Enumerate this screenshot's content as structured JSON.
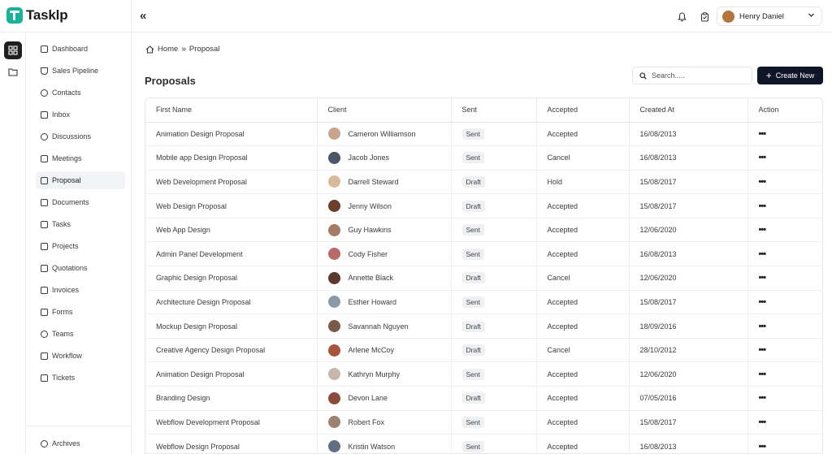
{
  "app": {
    "name": "Tasklp"
  },
  "topbar": {
    "collapse_glyph": "«",
    "bell_icon": "bell-icon",
    "clipboard_icon": "clipboard-icon",
    "user_name": "Henry Daniel",
    "avatar_color": "#b5743c"
  },
  "sidebar": {
    "items": [
      {
        "label": "Dashboard",
        "icon": "dashboard-icon"
      },
      {
        "label": "Sales Pipeline",
        "icon": "funnel-icon"
      },
      {
        "label": "Contacts",
        "icon": "user-icon"
      },
      {
        "label": "Inbox",
        "icon": "inbox-icon"
      },
      {
        "label": "Discussions",
        "icon": "chat-icon"
      },
      {
        "label": "Meetings",
        "icon": "calendar-icon"
      },
      {
        "label": "Proposal",
        "icon": "file-icon"
      },
      {
        "label": "Documents",
        "icon": "document-icon"
      },
      {
        "label": "Tasks",
        "icon": "tasks-icon"
      },
      {
        "label": "Projects",
        "icon": "projects-icon"
      },
      {
        "label": "Quotations",
        "icon": "quote-icon"
      },
      {
        "label": "Invoices",
        "icon": "invoice-icon"
      },
      {
        "label": "Forms",
        "icon": "form-icon"
      },
      {
        "label": "Teams",
        "icon": "team-icon"
      },
      {
        "label": "Workflow",
        "icon": "workflow-icon"
      },
      {
        "label": "Tickets",
        "icon": "ticket-icon"
      }
    ],
    "active": "Proposal",
    "archives_label": "Archives"
  },
  "breadcrumb": {
    "home": "Home",
    "separator": "»",
    "current": "Proposal"
  },
  "page": {
    "title": "Proposals"
  },
  "search": {
    "placeholder": "Search....."
  },
  "create_button": {
    "label": "Create New"
  },
  "accent": "#0d1526",
  "table": {
    "columns": [
      "First Name",
      "Client",
      "Sent",
      "Accepted",
      "Created At",
      "Action"
    ],
    "rows": [
      {
        "name": "Animation Design Proposal",
        "client": "Cameron Williamson",
        "sent": "Sent",
        "accepted": "Accepted",
        "created": "16/08/2013",
        "avatar": "#c9a48a"
      },
      {
        "name": "Mobile app Design Proposal",
        "client": "Jacob Jones",
        "sent": "Sent",
        "accepted": "Cancel",
        "created": "16/08/2013",
        "avatar": "#4a5568"
      },
      {
        "name": "Web Development Proposal",
        "client": "Darrell Steward",
        "sent": "Draft",
        "accepted": "Hold",
        "created": "15/08/2017",
        "avatar": "#d9b99b"
      },
      {
        "name": "Web Design Proposal",
        "client": "Jenny Wilson",
        "sent": "Draft",
        "accepted": "Accepted",
        "created": "15/08/2017",
        "avatar": "#6b3f2a"
      },
      {
        "name": "Web App Design",
        "client": "Guy Hawkins",
        "sent": "Sent",
        "accepted": "Accepted",
        "created": "12/06/2020",
        "avatar": "#a57c65"
      },
      {
        "name": "Admin Panel Development",
        "client": "Cody Fisher",
        "sent": "Sent",
        "accepted": "Accepted",
        "created": "16/08/2013",
        "avatar": "#b86a6a"
      },
      {
        "name": "Graphic Design Proposal",
        "client": "Annette Black",
        "sent": "Draft",
        "accepted": "Cancel",
        "created": "12/06/2020",
        "avatar": "#5a3a2e"
      },
      {
        "name": "Architecture Design Proposal",
        "client": "Esther Howard",
        "sent": "Sent",
        "accepted": "Accepted",
        "created": "15/08/2017",
        "avatar": "#8a9ba8"
      },
      {
        "name": "Mockup Design Proposal",
        "client": "Savannah Nguyen",
        "sent": "Draft",
        "accepted": "Accepted",
        "created": "18/09/2016",
        "avatar": "#7a5a48"
      },
      {
        "name": "Creative Agency Design Proposal",
        "client": "Arlene McCoy",
        "sent": "Draft",
        "accepted": "Cancel",
        "created": "28/10/2012",
        "avatar": "#a8553d"
      },
      {
        "name": "Animation Design Proposal",
        "client": "Kathryn Murphy",
        "sent": "Sent",
        "accepted": "Accepted",
        "created": "12/06/2020",
        "avatar": "#c7b6a9"
      },
      {
        "name": "Branding Design",
        "client": "Devon Lane",
        "sent": "Draft",
        "accepted": "Accepted",
        "created": "07/05/2016",
        "avatar": "#8c4a3a"
      },
      {
        "name": "Webflow Development Proposal",
        "client": "Robert Fox",
        "sent": "Sent",
        "accepted": "Accepted",
        "created": "15/08/2017",
        "avatar": "#9c8270"
      },
      {
        "name": "Webflow Design Proposal",
        "client": "Kristin Watson",
        "sent": "Sent",
        "accepted": "Accepted",
        "created": "16/08/2013",
        "avatar": "#5f6f82"
      }
    ],
    "action_glyph": "•••"
  }
}
